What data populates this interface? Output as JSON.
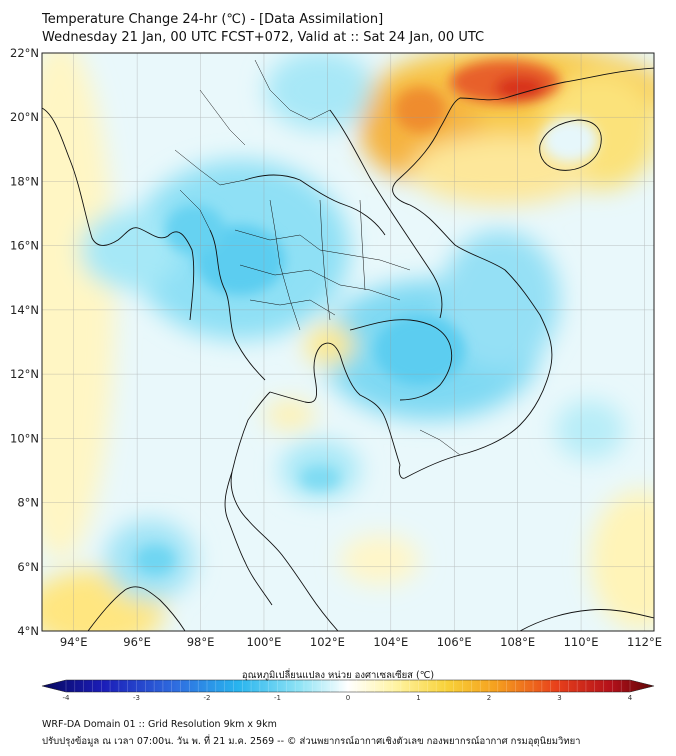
{
  "header": {
    "title_line1": "Temperature Change 24-hr (℃) - [Data Assimilation]",
    "title_line2": "Wednesday 21 Jan, 00 UTC FCST+072, Valid at :: Sat 24 Jan, 00 UTC"
  },
  "map": {
    "lat_labels": [
      "22°N",
      "20°N",
      "18°N",
      "16°N",
      "14°N",
      "12°N",
      "10°N",
      "8°N",
      "6°N",
      "4°N"
    ],
    "lon_labels": [
      "94°E",
      "96°E",
      "98°E",
      "100°E",
      "102°E",
      "104°E",
      "106°E",
      "108°E",
      "110°E",
      "112°E"
    ],
    "lat_range": [
      4,
      22
    ],
    "lon_range": [
      93,
      112.3
    ],
    "grid": true,
    "colors": {
      "warm_max": "#d01c1c",
      "warm": "#f5a623",
      "mild_warm": "#ffee88",
      "neutral": "#ffffff",
      "cool": "#66d9f2",
      "cool_strong": "#2ba8e8",
      "land_line": "#111111"
    }
  },
  "colorbar": {
    "title": "อุณหภูมิเปลี่ยนแปลง หน่วย องศาเซลเซียส (℃)",
    "ticks": [
      "-4",
      "-3",
      "-2",
      "-1",
      "0",
      "1",
      "2",
      "3",
      "4"
    ],
    "range": [
      -4,
      4
    ]
  },
  "footer": {
    "line1": "WRF-DA Domain 01 :: Grid Resolution 9km x 9km",
    "line2": "ปรับปรุงข้อมูล ณ เวลา 07:00น. วัน พ. ที่ 21 ม.ค. 2569 -- © ส่วนพยากรณ์อากาศเชิงตัวเลข กองพยากรณ์อากาศ กรมอุตุนิยมวิทยา"
  }
}
